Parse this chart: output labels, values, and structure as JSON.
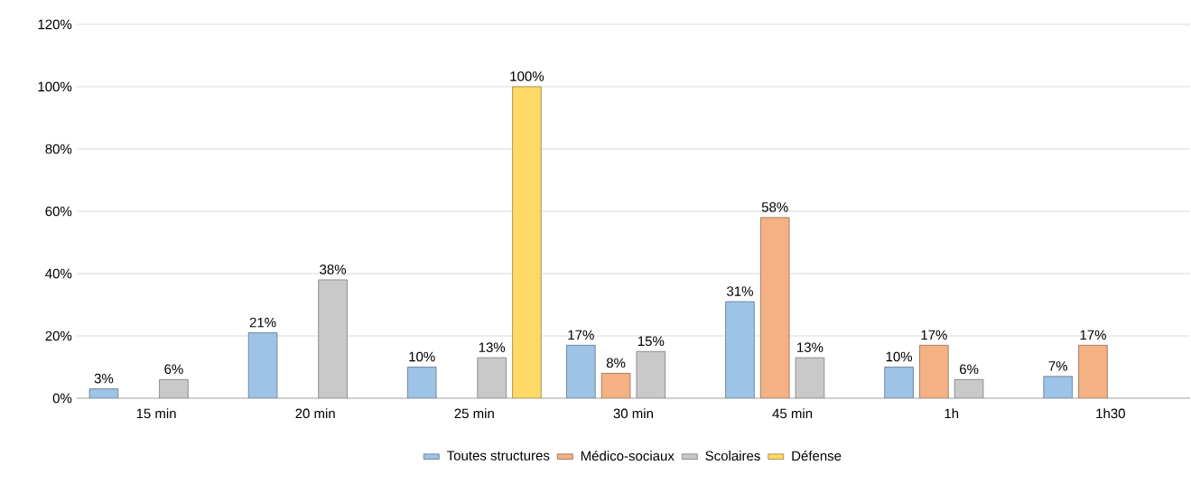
{
  "chart_data": {
    "type": "bar",
    "categories": [
      "15 min",
      "20 min",
      "25 min",
      "30 min",
      "45 min",
      "1h",
      "1h30"
    ],
    "series": [
      {
        "name": "Toutes structures",
        "color": "#9dc3e6",
        "values": [
          3,
          21,
          10,
          17,
          31,
          10,
          7
        ],
        "value_labels": [
          "3%",
          "21%",
          "10%",
          "17%",
          "31%",
          "10%",
          "7%"
        ]
      },
      {
        "name": "Médico-sociaux",
        "color": "#f4b183",
        "values": [
          null,
          null,
          null,
          8,
          58,
          17,
          17
        ],
        "value_labels": [
          null,
          null,
          null,
          "8%",
          "58%",
          "17%",
          "17%"
        ]
      },
      {
        "name": "Scolaires",
        "color": "#c9c9c9",
        "values": [
          6,
          38,
          13,
          15,
          13,
          6,
          null
        ],
        "value_labels": [
          "6%",
          "38%",
          "13%",
          "15%",
          "13%",
          "6%",
          null
        ]
      },
      {
        "name": "Défense",
        "color": "#ffd966",
        "values": [
          null,
          null,
          100,
          null,
          null,
          null,
          null
        ],
        "value_labels": [
          null,
          null,
          "100%",
          null,
          null,
          null,
          null
        ]
      }
    ],
    "ylim": [
      0,
      120
    ],
    "yticks": [
      {
        "value": 0,
        "label": "0%"
      },
      {
        "value": 20,
        "label": "20%"
      },
      {
        "value": 40,
        "label": "40%"
      },
      {
        "value": 60,
        "label": "60%"
      },
      {
        "value": 80,
        "label": "80%"
      },
      {
        "value": 100,
        "label": "100%"
      },
      {
        "value": 120,
        "label": "120%"
      }
    ],
    "grid": "y",
    "legend": "bottom"
  }
}
